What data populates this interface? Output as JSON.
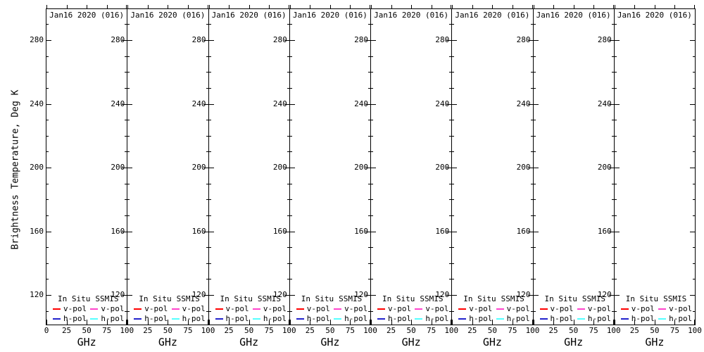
{
  "figure": {
    "background": "#ffffff",
    "border_color": "#000000",
    "y_axis_title": "Brightness Temperature, Deg K"
  },
  "panel": {
    "title": "Jan16 2020 (016)",
    "count": 8,
    "x_axis_label": "GHz"
  },
  "axes": {
    "x": {
      "tick_labels": [
        "0",
        "25",
        "50",
        "75",
        "100"
      ]
    },
    "y": {
      "tick_labels": [
        "280",
        "240",
        "200",
        "160",
        "120"
      ],
      "major_values": [
        280,
        240,
        200,
        160,
        120
      ],
      "minor_values": [
        290,
        270,
        260,
        250,
        230,
        220,
        210,
        190,
        180,
        170,
        150,
        140,
        130,
        110
      ]
    }
  },
  "legend": {
    "groups": [
      {
        "header": "In Situ",
        "entries": [
          {
            "label": "v-pol",
            "color": "#ff0000"
          },
          {
            "label": "h-pol",
            "color": "#2222cc"
          }
        ]
      },
      {
        "header": "SSMIS",
        "entries": [
          {
            "label": "v-pol",
            "color": "#ff44cc"
          },
          {
            "label": "h-pol",
            "color": "#55ffff"
          }
        ]
      }
    ]
  },
  "chart_data": {
    "type": "line",
    "title": "Jan16 2020 (016)",
    "panels": 8,
    "xlabel": "GHz",
    "ylabel": "Brightness Temperature, Deg K",
    "xlim": [
      0,
      100
    ],
    "ylim": [
      100,
      300
    ],
    "x_ticks": [
      0,
      25,
      50,
      75,
      100
    ],
    "y_ticks": [
      280,
      240,
      200,
      160,
      120
    ],
    "y_minor_tick_interval": 10,
    "grid": false,
    "legend_position": "bottom-inside",
    "series": [
      {
        "name": "In Situ v-pol",
        "color": "#ff0000",
        "x": [],
        "values": []
      },
      {
        "name": "In Situ h-pol",
        "color": "#2222cc",
        "x": [],
        "values": []
      },
      {
        "name": "SSMIS v-pol",
        "color": "#ff44cc",
        "x": [],
        "values": []
      },
      {
        "name": "SSMIS h-pol",
        "color": "#55ffff",
        "x": [],
        "values": []
      }
    ]
  }
}
